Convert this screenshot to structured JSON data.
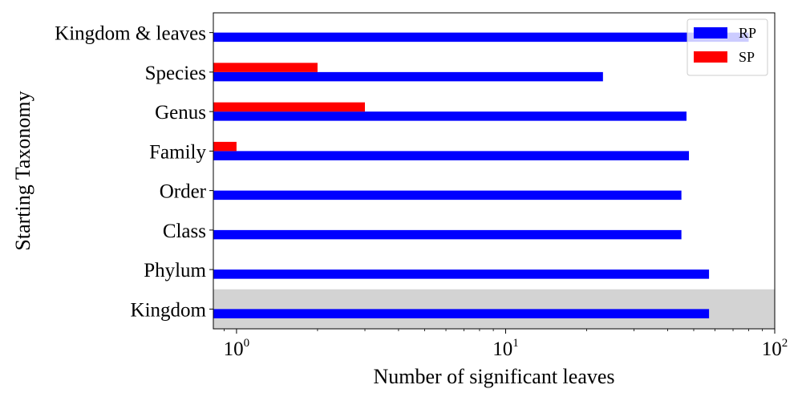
{
  "chart_data": {
    "type": "bar",
    "orientation": "horizontal",
    "categories": [
      "Kingdom",
      "Phylum",
      "Class",
      "Order",
      "Family",
      "Genus",
      "Species",
      "Kingdom & leaves"
    ],
    "series": [
      {
        "name": "RP",
        "color": "#0000ff",
        "values": [
          57,
          57,
          45,
          45,
          48,
          47,
          23,
          80
        ]
      },
      {
        "name": "SP",
        "color": "#ff0000",
        "values": [
          null,
          null,
          null,
          null,
          1,
          3,
          2,
          null
        ]
      }
    ],
    "xlabel": "Number of significant leaves",
    "ylabel": "Starting Taxonomy",
    "xscale": "log",
    "xlim": [
      0.82,
      100
    ],
    "x_ticks": [
      {
        "value": 1,
        "base": "10",
        "exp": "0"
      },
      {
        "value": 10,
        "base": "10",
        "exp": "1"
      },
      {
        "value": 100,
        "base": "10",
        "exp": "2"
      }
    ],
    "highlighted_category": "Kingdom",
    "highlight_color": "#d3d3d3",
    "legend_position": "top-right",
    "grid": false
  }
}
